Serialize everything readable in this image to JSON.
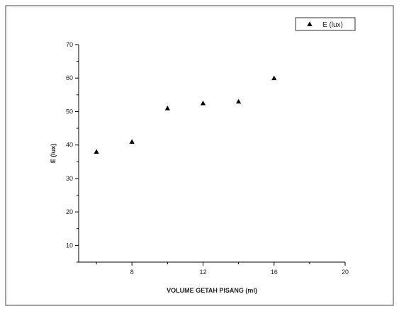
{
  "chart_data": {
    "type": "scatter",
    "xlabel": "VOLUME GETAH PISANG (ml)",
    "ylabel": "E (lux)",
    "xlim": [
      5,
      20
    ],
    "ylim": [
      5,
      70
    ],
    "xticks": [
      8,
      12,
      16,
      20
    ],
    "yticks": [
      10,
      20,
      30,
      40,
      50,
      60,
      70
    ],
    "x_minor_step": 2,
    "y_minor_step": 5,
    "grid": false,
    "legend_position": "top-right",
    "series": [
      {
        "name": "E (lux)",
        "marker": "triangle",
        "color": "#000000",
        "x": [
          6,
          8,
          10,
          12,
          14,
          16
        ],
        "y": [
          38,
          41,
          51,
          52.5,
          53,
          60
        ]
      }
    ]
  }
}
